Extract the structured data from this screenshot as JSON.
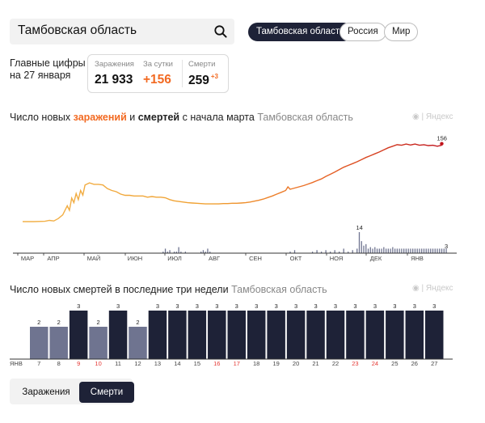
{
  "search": {
    "value": "Тамбовская область"
  },
  "regions": [
    {
      "label": "Тамбовская область",
      "active": true
    },
    {
      "label": "Россия",
      "active": false
    },
    {
      "label": "Мир",
      "active": false
    }
  ],
  "key_figures": {
    "title_line1": "Главные цифры",
    "title_line2": "на 27 января",
    "infections_label": "Заражения",
    "infections_value": "21 933",
    "daily_label": "За сутки",
    "daily_value": "+156",
    "deaths_label": "Смерти",
    "deaths_value": "259",
    "deaths_delta": "+3"
  },
  "chart1_title": {
    "part1": "Число новых ",
    "part2": "заражений",
    "part3": " и ",
    "part4": "смертей",
    "part5": " с начала марта",
    "region": "Тамбовская область"
  },
  "chart2_title": {
    "text": "Число новых смертей в последние три недели",
    "region": "Тамбовская область"
  },
  "watermark": "Яндекс",
  "tabs": {
    "infections": "Заражения",
    "deaths": "Смерти"
  },
  "colors": {
    "dark": "#1e2237",
    "accent": "#f26a22",
    "gray_bar": "#6f7490",
    "weekend": "#e53935"
  },
  "chart_data": [
    {
      "type": "line",
      "x_ticks": [
        "МАР",
        "АПР",
        "МАЙ",
        "ИЮН",
        "ИЮЛ",
        "АВГ",
        "СЕН",
        "ОКТ",
        "НОЯ",
        "ДЕК",
        "ЯНВ"
      ],
      "series": [
        {
          "name": "заражений",
          "last_label": "156",
          "points": [
            [
              0,
              8
            ],
            [
              5,
              8
            ],
            [
              10,
              9
            ],
            [
              12,
              12
            ],
            [
              14,
              10
            ],
            [
              16,
              18
            ],
            [
              18,
              30
            ],
            [
              20,
              60
            ],
            [
              21,
              45
            ],
            [
              22,
              85
            ],
            [
              23,
              70
            ],
            [
              24,
              100
            ],
            [
              25,
              80
            ],
            [
              26,
              110
            ],
            [
              27,
              95
            ],
            [
              28,
              128
            ],
            [
              30,
              135
            ],
            [
              32,
              130
            ],
            [
              34,
              130
            ],
            [
              36,
              128
            ],
            [
              38,
              116
            ],
            [
              40,
              110
            ],
            [
              42,
              106
            ],
            [
              44,
              98
            ],
            [
              46,
              94
            ],
            [
              48,
              94
            ],
            [
              50,
              92
            ],
            [
              52,
              92
            ],
            [
              54,
              92
            ],
            [
              56,
              88
            ],
            [
              58,
              90
            ],
            [
              60,
              88
            ],
            [
              62,
              88
            ],
            [
              64,
              86
            ],
            [
              66,
              80
            ],
            [
              68,
              76
            ],
            [
              70,
              74
            ],
            [
              72,
              72
            ],
            [
              74,
              70
            ],
            [
              76,
              69
            ],
            [
              78,
              68
            ],
            [
              80,
              67
            ],
            [
              82,
              66
            ],
            [
              84,
              66
            ],
            [
              86,
              66
            ],
            [
              88,
              66
            ],
            [
              90,
              67
            ],
            [
              92,
              67
            ],
            [
              94,
              68
            ],
            [
              96,
              68
            ],
            [
              98,
              69
            ],
            [
              100,
              70
            ],
            [
              102,
              72
            ],
            [
              104,
              75
            ],
            [
              106,
              78
            ],
            [
              108,
              82
            ],
            [
              110,
              87
            ],
            [
              112,
              92
            ],
            [
              114,
              98
            ],
            [
              116,
              104
            ],
            [
              118,
              110
            ],
            [
              119,
              122
            ],
            [
              120,
              114
            ],
            [
              122,
              118
            ],
            [
              124,
              122
            ],
            [
              126,
              126
            ],
            [
              128,
              131
            ],
            [
              130,
              136
            ],
            [
              132,
              142
            ],
            [
              134,
              148
            ],
            [
              136,
              156
            ],
            [
              138,
              163
            ],
            [
              140,
              170
            ],
            [
              142,
              178
            ],
            [
              144,
              186
            ],
            [
              146,
              192
            ],
            [
              148,
              198
            ],
            [
              150,
              204
            ],
            [
              152,
              211
            ],
            [
              154,
              218
            ],
            [
              156,
              224
            ],
            [
              158,
              230
            ],
            [
              160,
              236
            ],
            [
              162,
              243
            ],
            [
              164,
              250
            ],
            [
              166,
              255
            ],
            [
              168,
              260
            ],
            [
              170,
              258
            ],
            [
              172,
              262
            ],
            [
              174,
              259
            ],
            [
              176,
              262
            ],
            [
              178,
              258
            ],
            [
              180,
              260
            ],
            [
              182,
              257
            ],
            [
              184,
              258
            ],
            [
              186,
              255
            ],
            [
              188,
              258
            ],
            [
              190,
              156
            ]
          ]
        },
        {
          "name": "смертей",
          "points": [
            [
              63,
              1
            ],
            [
              64,
              3
            ],
            [
              65,
              1
            ],
            [
              66,
              2
            ],
            [
              67,
              0
            ],
            [
              68,
              1
            ],
            [
              69,
              1
            ],
            [
              70,
              4
            ],
            [
              71,
              1
            ],
            [
              72,
              0
            ],
            [
              73,
              1
            ],
            [
              80,
              1
            ],
            [
              81,
              2
            ],
            [
              82,
              1
            ],
            [
              83,
              3
            ],
            [
              84,
              1
            ],
            [
              120,
              1
            ],
            [
              122,
              2
            ],
            [
              130,
              1
            ],
            [
              132,
              2
            ],
            [
              134,
              1
            ],
            [
              136,
              2
            ],
            [
              138,
              1
            ],
            [
              140,
              2
            ],
            [
              142,
              1
            ],
            [
              144,
              3
            ],
            [
              146,
              1
            ],
            [
              148,
              2
            ],
            [
              150,
              3
            ],
            [
              151,
              14
            ],
            [
              152,
              8
            ],
            [
              153,
              5
            ],
            [
              154,
              6
            ],
            [
              155,
              3
            ],
            [
              156,
              4
            ],
            [
              157,
              3
            ],
            [
              158,
              4
            ],
            [
              159,
              3
            ],
            [
              160,
              3
            ],
            [
              161,
              3
            ],
            [
              162,
              4
            ],
            [
              163,
              3
            ],
            [
              164,
              3
            ],
            [
              165,
              3
            ],
            [
              166,
              4
            ],
            [
              167,
              3
            ],
            [
              168,
              3
            ],
            [
              169,
              3
            ],
            [
              170,
              3
            ],
            [
              171,
              3
            ],
            [
              172,
              3
            ],
            [
              173,
              3
            ],
            [
              174,
              3
            ],
            [
              175,
              3
            ],
            [
              176,
              3
            ],
            [
              177,
              3
            ],
            [
              178,
              3
            ],
            [
              179,
              3
            ],
            [
              180,
              3
            ],
            [
              181,
              3
            ],
            [
              182,
              3
            ],
            [
              183,
              3
            ],
            [
              184,
              3
            ],
            [
              185,
              3
            ],
            [
              186,
              3
            ],
            [
              187,
              3
            ],
            [
              188,
              3
            ],
            [
              189,
              3
            ],
            [
              190,
              3
            ]
          ]
        }
      ],
      "annotations": [
        "156",
        "14",
        "3"
      ]
    },
    {
      "type": "bar",
      "x_prefix": "ЯНВ",
      "categories": [
        "7",
        "8",
        "9",
        "10",
        "11",
        "12",
        "13",
        "14",
        "15",
        "16",
        "17",
        "18",
        "19",
        "20",
        "21",
        "22",
        "23",
        "24",
        "25",
        "26",
        "27"
      ],
      "weekend": [
        false,
        false,
        true,
        true,
        false,
        false,
        false,
        false,
        false,
        true,
        true,
        false,
        false,
        false,
        false,
        false,
        true,
        true,
        false,
        false,
        false
      ],
      "values": [
        2,
        2,
        3,
        2,
        3,
        2,
        3,
        3,
        3,
        3,
        3,
        3,
        3,
        3,
        3,
        3,
        3,
        3,
        3,
        3,
        3
      ],
      "ylim": [
        0,
        3
      ]
    }
  ]
}
